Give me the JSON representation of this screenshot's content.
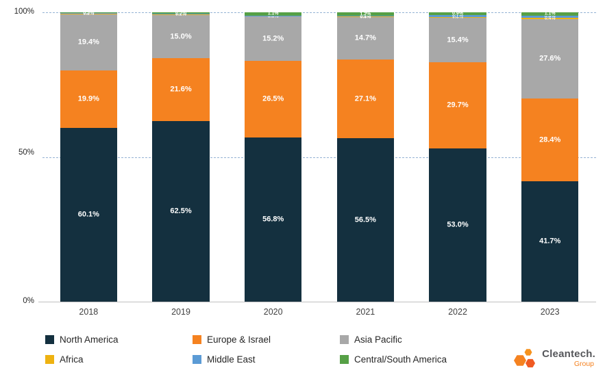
{
  "chart_data": {
    "type": "bar",
    "stacked": true,
    "title": "",
    "xlabel": "",
    "ylabel": "",
    "ylim": [
      0,
      100
    ],
    "grid": "dashed horizontal lines at 50% and 100%",
    "legend_position": "bottom",
    "ytick_top": "100%",
    "ytick_mid": "50%",
    "ytick_bottom": "0%",
    "categories": [
      "2018",
      "2019",
      "2020",
      "2021",
      "2022",
      "2023"
    ],
    "series": [
      {
        "name": "North America",
        "color": "#14303f",
        "values": [
          60.1,
          62.5,
          56.8,
          56.5,
          53.0,
          41.7
        ]
      },
      {
        "name": "Europe & Israel",
        "color": "#f58220",
        "values": [
          19.9,
          21.6,
          26.5,
          27.1,
          29.7,
          28.4
        ]
      },
      {
        "name": "Asia Pacific",
        "color": "#a8a8a8",
        "values": [
          19.4,
          15.0,
          15.2,
          14.7,
          15.4,
          27.6
        ]
      },
      {
        "name": "Africa",
        "color": "#eeb211",
        "values": [
          0.2,
          0.2,
          0.3,
          0.3,
          0.3,
          0.4
        ]
      },
      {
        "name": "Middle East",
        "color": "#5b9bd5",
        "values": [
          0.1,
          0.2,
          0.1,
          0.2,
          0.7,
          0.8
        ]
      },
      {
        "name": "Central/South America",
        "color": "#56a046",
        "values": [
          0.3,
          0.5,
          1.1,
          1.2,
          0.9,
          1.1
        ]
      }
    ]
  },
  "legend": {
    "items": [
      {
        "label": "North America",
        "color": "#14303f"
      },
      {
        "label": "Europe & Israel",
        "color": "#f58220"
      },
      {
        "label": "Asia Pacific",
        "color": "#a8a8a8"
      },
      {
        "label": "Africa",
        "color": "#eeb211"
      },
      {
        "label": "Middle East",
        "color": "#5b9bd5"
      },
      {
        "label": "Central/South America",
        "color": "#56a046"
      }
    ]
  },
  "logo": {
    "line1": "Cleantech.",
    "line2": "Group"
  }
}
